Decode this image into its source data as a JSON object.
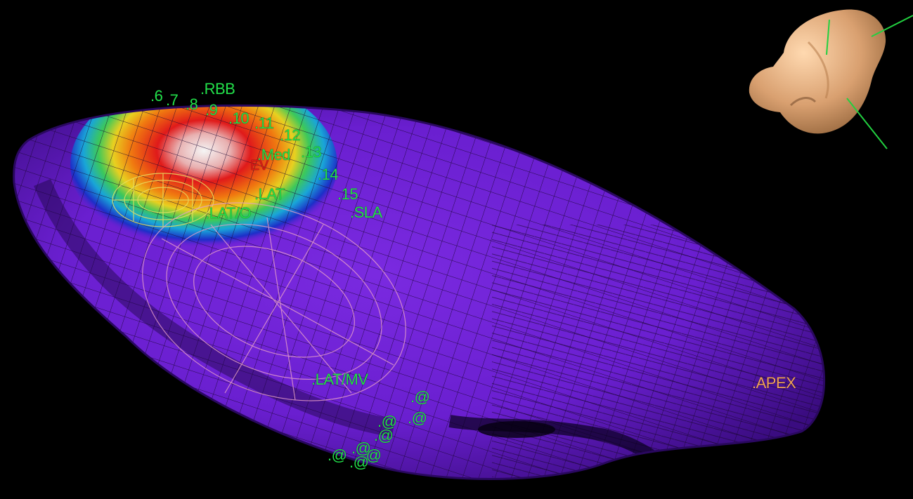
{
  "colors": {
    "background": "#000000",
    "surface": "#6a1fd0",
    "mesh": "#1a0530",
    "point_label": "#22e04a",
    "apex_label": "#f2a25a",
    "marker_label": "#e01818",
    "activation_early": "#f5f5f5",
    "activation_mid": "#e01a1a",
    "activation_late": "#1c2fc8"
  },
  "labels": {
    "l6": ".6",
    "l7": ".7",
    "l8": ".8",
    "l9": ".9",
    "rbb": ".RBB",
    "l10": ".10",
    "l11": ".11",
    "l12": ".12",
    "med": ".Med",
    "l13": ".13",
    "l14": ".14",
    "l15": ".15",
    "sla": ".SLA",
    "lat": ".LAT",
    "lato": ".LAT/O",
    "latmv": ".LAT/MV",
    "apex": ".APEX",
    "marker": "EV",
    "at": ".@"
  },
  "icons": {
    "orientation": "heart-orientation-icon"
  }
}
